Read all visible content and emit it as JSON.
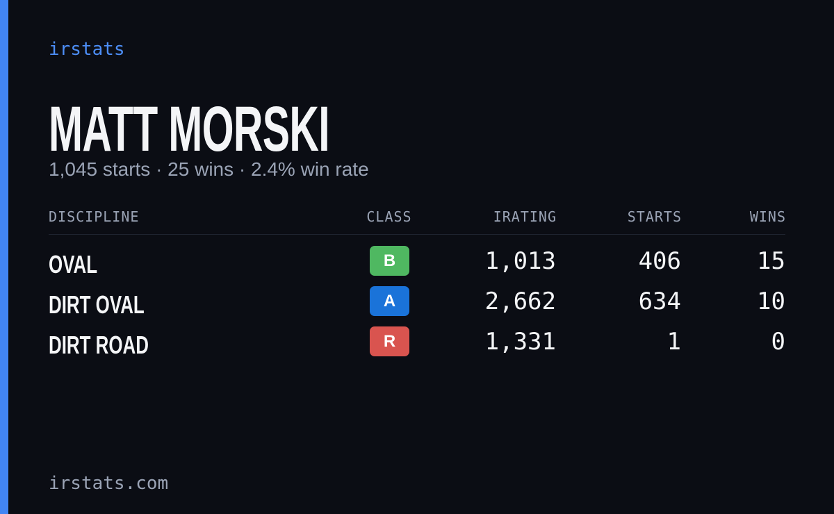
{
  "brand": "irstats",
  "name": "MATT MORSKI",
  "summary": "1,045 starts · 25 wins · 2.4% win rate",
  "table": {
    "headers": [
      "DISCIPLINE",
      "CLASS",
      "IRATING",
      "STARTS",
      "WINS"
    ],
    "rows": [
      [
        "OVAL",
        "B",
        "1,013",
        "406",
        "15"
      ],
      [
        "DIRT OVAL",
        "A",
        "2,662",
        "634",
        "10"
      ],
      [
        "DIRT ROAD",
        "R",
        "1,331",
        "1",
        "0"
      ]
    ]
  },
  "footer": "irstats.com"
}
